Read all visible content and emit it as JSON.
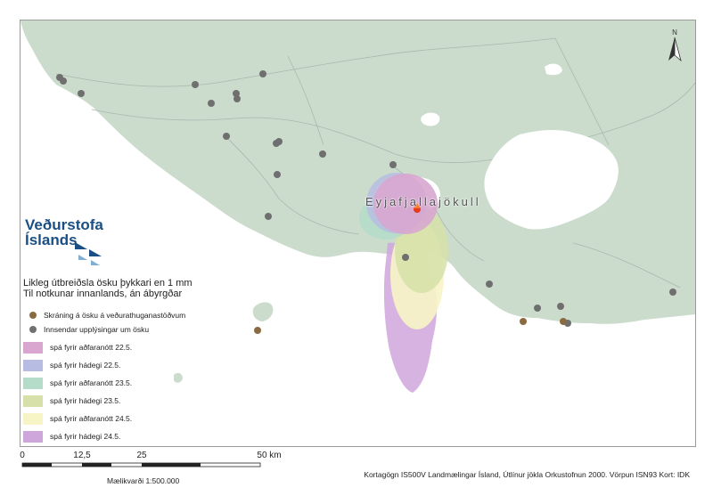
{
  "map": {
    "volcano_label": "Eyjafjallajökull",
    "colors": {
      "land": "#cbdccd",
      "land_shadow": "#bdd0c0",
      "sea": "#ffffff",
      "roads": "#9aa9a0",
      "glacier": "#ffffff",
      "volcano": "#e63a1e"
    }
  },
  "logo": {
    "line1": "Veðurstofa",
    "line2": "Íslands"
  },
  "legend": {
    "title_line1": "Likleg útbreiðsla ösku þykkari en 1 mm",
    "title_line2": "Til notkunar innanlands, án ábyrgðar",
    "items": [
      {
        "label": "Skráning á ösku á veðurathuganastöðvum",
        "symbol": "dot",
        "color": "#8a6a40"
      },
      {
        "label": "Innsendar upplýsingar um ösku",
        "symbol": "dot",
        "color": "#707070"
      },
      {
        "label": "spá fyrir aðfaranótt 22.5.",
        "symbol": "swatch",
        "color": "#d8a6cf"
      },
      {
        "label": "spá fyrir hádegi 22.5.",
        "symbol": "swatch",
        "color": "#b7bde2"
      },
      {
        "label": "spá fyrir aðfaranótt 23.5.",
        "symbol": "swatch",
        "color": "#b4dcc9"
      },
      {
        "label": "spá fyrir hádegi 23.5.",
        "symbol": "swatch",
        "color": "#d6e0a8"
      },
      {
        "label": "spá fyrir aðfaranótt 24.5.",
        "symbol": "swatch",
        "color": "#f7f4c6"
      },
      {
        "label": "spá fyrir hádegi 24.5.",
        "symbol": "swatch",
        "color": "#cfa6dc"
      }
    ]
  },
  "scale": {
    "ticks": [
      "0",
      "12,5",
      "25",
      "50 km"
    ],
    "caption": "Mælikvarði 1:500.000"
  },
  "credits": "Kortagögn IS500V Landmælingar Ísland, Útlínur jökla Orkustofnun 2000. Vörpun ISN93 Kort: IDK",
  "north_label": "N"
}
